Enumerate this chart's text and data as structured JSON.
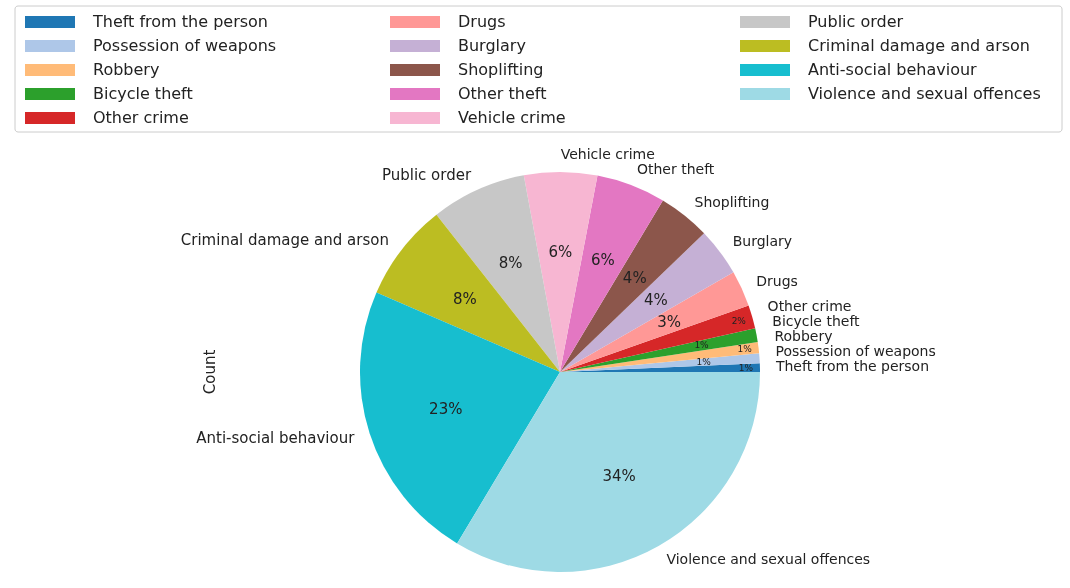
{
  "chart_data": {
    "type": "pie",
    "ylabel": "Count",
    "legend": "top",
    "categories": [
      "Theft from the person",
      "Possession of weapons",
      "Robbery",
      "Bicycle theft",
      "Other crime",
      "Drugs",
      "Burglary",
      "Shoplifting",
      "Other theft",
      "Vehicle crime",
      "Public order",
      "Criminal damage and arson",
      "Anti-social behaviour",
      "Violence and sexual offences"
    ],
    "values": [
      0.7,
      0.8,
      0.9,
      1.1,
      1.9,
      2.9,
      3.9,
      4.2,
      5.6,
      5.9,
      7.7,
      7.9,
      22.9,
      33.6
    ],
    "value_labels": [
      "1%",
      "1%",
      "1%",
      "1%",
      "2%",
      "3%",
      "4%",
      "4%",
      "6%",
      "6%",
      "8%",
      "8%",
      "23%",
      "34%"
    ],
    "colors": [
      "#1f77b4",
      "#aec7e8",
      "#ffbb78",
      "#2ca02c",
      "#d62728",
      "#ff9896",
      "#c5b0d5",
      "#8c564b",
      "#e377c2",
      "#f7b6d2",
      "#c7c7c7",
      "#bcbd22",
      "#17becf",
      "#9edae5"
    ]
  }
}
